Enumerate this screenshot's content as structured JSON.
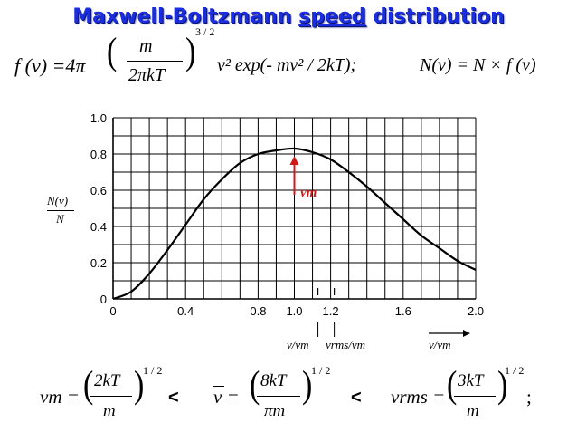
{
  "title": {
    "part1": "Maxwell-Boltzmann ",
    "part2": "speed",
    "part3": " distribution"
  },
  "formula_f": {
    "lhs": "f (v) =4π",
    "num": "m",
    "den": "2πkT",
    "exp": "3 / 2",
    "rest": "v² exp(- mv² / 2kT);",
    "nv": "N(v) = N × f (v)"
  },
  "graph": {
    "ylabel_num": "N(v)",
    "ylabel_den": "N",
    "yticks": [
      "1.0",
      "0.8",
      "0.6",
      "0.4",
      "0.2",
      "0"
    ],
    "xticks": [
      "0",
      "0.4",
      "0.8",
      "1.0",
      "1.2",
      "1.6",
      "2.0"
    ],
    "peak_label": "vm",
    "lbl_vavg": "v/vm",
    "lbl_vrms": "vrms/vm",
    "lbl_axis": "v/vm"
  },
  "chart_data": {
    "type": "line",
    "xlabel": "v/vm",
    "ylabel": "N(v)/N",
    "xlim": [
      0,
      2.0
    ],
    "ylim": [
      0,
      1.0
    ],
    "grid": true,
    "series": [
      {
        "x": [
          0,
          0.1,
          0.2,
          0.3,
          0.4,
          0.5,
          0.6,
          0.7,
          0.8,
          0.9,
          1.0,
          1.1,
          1.2,
          1.3,
          1.4,
          1.5,
          1.6,
          1.7,
          1.8,
          1.9,
          2.0
        ],
        "values": [
          0,
          0.04,
          0.14,
          0.27,
          0.41,
          0.55,
          0.66,
          0.75,
          0.8,
          0.82,
          0.83,
          0.81,
          0.77,
          0.7,
          0.62,
          0.53,
          0.44,
          0.35,
          0.28,
          0.21,
          0.16
        ]
      }
    ],
    "annotations": [
      {
        "text": "vm",
        "x": 1.0
      },
      {
        "text": "v/vm",
        "x": 1.13
      },
      {
        "text": "vrms/vm",
        "x": 1.22
      }
    ]
  },
  "bottom": {
    "vm_lhs": "vm =",
    "vm_num": "2kT",
    "vm_den": "m",
    "lt1": "<",
    "vbar_lhs": "v =",
    "vbar_num": "8kT",
    "vbar_den": "πm",
    "lt2": "<",
    "vrms_lhs": "vrms =",
    "vrms_num": "3kT",
    "vrms_den": "m",
    "exp": "1 / 2",
    "end": ";"
  },
  "colors": {
    "title": "#1a2ee0",
    "curve": "#000000",
    "arrow": "#d01a1a",
    "grid": "#000000"
  }
}
